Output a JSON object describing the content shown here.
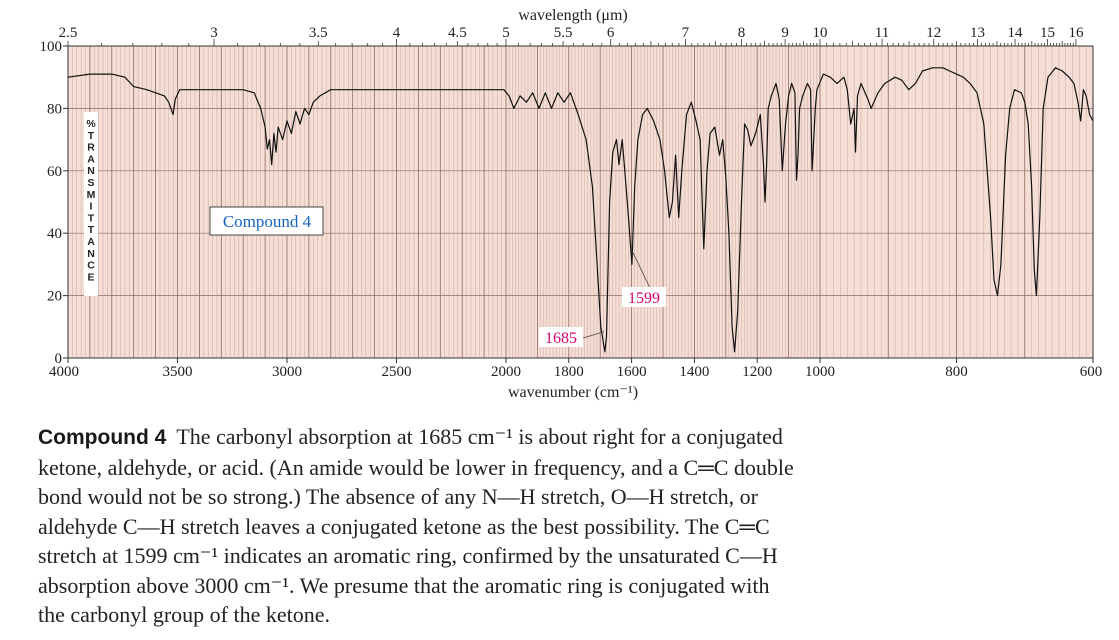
{
  "chart_data": {
    "type": "line",
    "title": "",
    "compound_label": "Compound 4",
    "top_axis_label": "wavelength (μm)",
    "xlabel": "wavenumber (cm⁻¹)",
    "ylabel": "%TRANSMITTANCE",
    "ylim": [
      0,
      100
    ],
    "y_ticks": [
      "0",
      "20",
      "40",
      "60",
      "80",
      "100"
    ],
    "x_ticks": [
      4000,
      3500,
      3000,
      2500,
      2000,
      1800,
      1600,
      1400,
      1200,
      1000,
      800,
      600
    ],
    "x_tick_labels": [
      "4000",
      "3500",
      "3000",
      "2500",
      "2000",
      "1800",
      "1600",
      "1400",
      "1200",
      "1000",
      "800",
      "600"
    ],
    "top_ticks": [
      2.5,
      3,
      3.5,
      4,
      4.5,
      5,
      5.5,
      6,
      7,
      8,
      9,
      10,
      11,
      12,
      13,
      14,
      15,
      16
    ],
    "top_tick_labels": [
      "2.5",
      "3",
      "3.5",
      "4",
      "4.5",
      "5",
      "5.5",
      "6",
      "7",
      "8",
      "9",
      "10",
      "11",
      "12",
      "13",
      "14",
      "15",
      "16"
    ],
    "annotations": [
      {
        "text": "1685",
        "x": 1685,
        "y": 2
      },
      {
        "text": "1599",
        "x": 1599,
        "y": 30
      }
    ],
    "series": [
      {
        "points": [
          [
            4000,
            90
          ],
          [
            3900,
            91
          ],
          [
            3800,
            91
          ],
          [
            3740,
            90
          ],
          [
            3700,
            87
          ],
          [
            3640,
            86
          ],
          [
            3600,
            85
          ],
          [
            3560,
            84
          ],
          [
            3540,
            82
          ],
          [
            3520,
            78
          ],
          [
            3510,
            83
          ],
          [
            3490,
            86
          ],
          [
            3400,
            86
          ],
          [
            3300,
            86
          ],
          [
            3200,
            86
          ],
          [
            3150,
            85
          ],
          [
            3120,
            80
          ],
          [
            3100,
            74
          ],
          [
            3090,
            67
          ],
          [
            3080,
            70
          ],
          [
            3070,
            62
          ],
          [
            3060,
            72
          ],
          [
            3050,
            66
          ],
          [
            3040,
            74
          ],
          [
            3020,
            70
          ],
          [
            3000,
            76
          ],
          [
            2980,
            72
          ],
          [
            2960,
            79
          ],
          [
            2940,
            75
          ],
          [
            2920,
            80
          ],
          [
            2900,
            78
          ],
          [
            2880,
            82
          ],
          [
            2850,
            84
          ],
          [
            2800,
            86
          ],
          [
            2700,
            86
          ],
          [
            2600,
            86
          ],
          [
            2500,
            86
          ],
          [
            2400,
            86
          ],
          [
            2300,
            86
          ],
          [
            2200,
            86
          ],
          [
            2100,
            86
          ],
          [
            2050,
            86
          ],
          [
            2010,
            86
          ],
          [
            1990,
            84
          ],
          [
            1975,
            80
          ],
          [
            1955,
            84
          ],
          [
            1935,
            82
          ],
          [
            1915,
            85
          ],
          [
            1895,
            80
          ],
          [
            1875,
            85
          ],
          [
            1855,
            80
          ],
          [
            1835,
            85
          ],
          [
            1815,
            82
          ],
          [
            1795,
            85
          ],
          [
            1770,
            78
          ],
          [
            1745,
            70
          ],
          [
            1725,
            55
          ],
          [
            1710,
            30
          ],
          [
            1698,
            10
          ],
          [
            1690,
            5
          ],
          [
            1685,
            2
          ],
          [
            1680,
            7
          ],
          [
            1670,
            50
          ],
          [
            1660,
            66
          ],
          [
            1648,
            70
          ],
          [
            1640,
            62
          ],
          [
            1630,
            70
          ],
          [
            1620,
            58
          ],
          [
            1610,
            45
          ],
          [
            1599,
            30
          ],
          [
            1590,
            55
          ],
          [
            1580,
            70
          ],
          [
            1565,
            78
          ],
          [
            1550,
            80
          ],
          [
            1530,
            76
          ],
          [
            1510,
            70
          ],
          [
            1495,
            60
          ],
          [
            1480,
            45
          ],
          [
            1470,
            50
          ],
          [
            1460,
            65
          ],
          [
            1450,
            45
          ],
          [
            1440,
            60
          ],
          [
            1425,
            78
          ],
          [
            1410,
            82
          ],
          [
            1395,
            76
          ],
          [
            1382,
            70
          ],
          [
            1370,
            35
          ],
          [
            1360,
            60
          ],
          [
            1350,
            72
          ],
          [
            1335,
            74
          ],
          [
            1320,
            65
          ],
          [
            1310,
            70
          ],
          [
            1300,
            58
          ],
          [
            1290,
            40
          ],
          [
            1280,
            10
          ],
          [
            1272,
            2
          ],
          [
            1262,
            15
          ],
          [
            1250,
            50
          ],
          [
            1240,
            75
          ],
          [
            1230,
            73
          ],
          [
            1220,
            68
          ],
          [
            1205,
            72
          ],
          [
            1190,
            78
          ],
          [
            1180,
            62
          ],
          [
            1175,
            50
          ],
          [
            1170,
            62
          ],
          [
            1165,
            80
          ],
          [
            1155,
            84
          ],
          [
            1140,
            88
          ],
          [
            1130,
            83
          ],
          [
            1120,
            60
          ],
          [
            1110,
            75
          ],
          [
            1100,
            84
          ],
          [
            1090,
            88
          ],
          [
            1080,
            85
          ],
          [
            1075,
            57
          ],
          [
            1070,
            65
          ],
          [
            1065,
            80
          ],
          [
            1055,
            84
          ],
          [
            1040,
            88
          ],
          [
            1030,
            86
          ],
          [
            1025,
            60
          ],
          [
            1015,
            80
          ],
          [
            1010,
            86
          ],
          [
            995,
            91
          ],
          [
            985,
            90
          ],
          [
            975,
            88
          ],
          [
            965,
            90
          ],
          [
            960,
            86
          ],
          [
            955,
            75
          ],
          [
            950,
            80
          ],
          [
            948,
            66
          ],
          [
            945,
            84
          ],
          [
            940,
            88
          ],
          [
            930,
            83
          ],
          [
            925,
            80
          ],
          [
            915,
            85
          ],
          [
            905,
            88
          ],
          [
            890,
            90
          ],
          [
            880,
            89
          ],
          [
            870,
            86
          ],
          [
            860,
            88
          ],
          [
            850,
            92
          ],
          [
            835,
            93
          ],
          [
            820,
            93
          ],
          [
            810,
            92
          ],
          [
            800,
            91
          ],
          [
            790,
            90
          ],
          [
            780,
            88
          ],
          [
            770,
            85
          ],
          [
            760,
            75
          ],
          [
            750,
            45
          ],
          [
            745,
            25
          ],
          [
            740,
            20
          ],
          [
            735,
            30
          ],
          [
            728,
            65
          ],
          [
            722,
            80
          ],
          [
            715,
            86
          ],
          [
            705,
            85
          ],
          [
            700,
            82
          ],
          [
            695,
            75
          ],
          [
            690,
            55
          ],
          [
            686,
            28
          ],
          [
            683,
            20
          ],
          [
            678,
            45
          ],
          [
            673,
            80
          ],
          [
            666,
            90
          ],
          [
            655,
            93
          ],
          [
            645,
            92
          ],
          [
            635,
            90
          ],
          [
            628,
            88
          ],
          [
            622,
            82
          ],
          [
            618,
            76
          ],
          [
            614,
            86
          ],
          [
            610,
            84
          ],
          [
            605,
            78
          ],
          [
            600,
            76
          ]
        ]
      }
    ]
  },
  "caption": {
    "label": "Compound 4",
    "lines": [
      "The carbonyl absorption at 1685 cm⁻¹ is about right for a conjugated",
      "ketone, aldehyde, or acid. (An amide would be lower in frequency, and a C═C double",
      "bond would not be so strong.) The absence of any N—H stretch, O—H stretch, or",
      "aldehyde C—H stretch leaves a conjugated ketone as the best possibility. The C═C",
      "stretch at 1599 cm⁻¹ indicates an aromatic ring, confirmed by the unsaturated C—H",
      "absorption above 3000 cm⁻¹. We presume that the aromatic ring is conjugated with",
      "the carbonyl group of the ketone."
    ]
  },
  "colors": {
    "plot_background": "#f4ded6",
    "grid_minor": "#c9a39a",
    "grid_major": "#8f6a62",
    "trace": "#111111",
    "annotation": "#d6006e",
    "label_box_text": "#1565c0"
  }
}
